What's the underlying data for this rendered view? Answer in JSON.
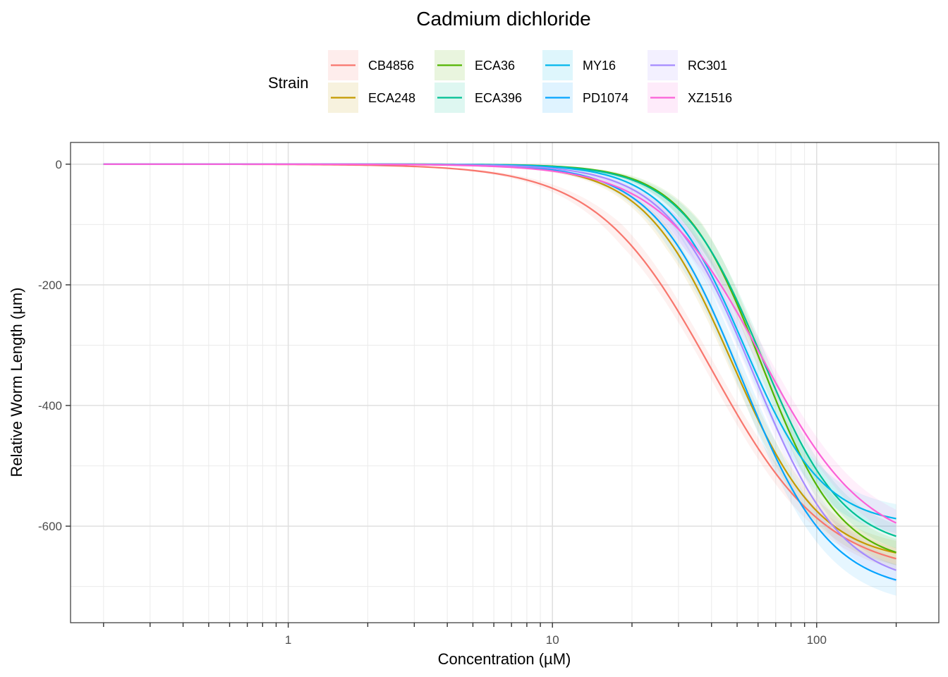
{
  "chart_data": {
    "type": "line",
    "title": "Cadmium dichloride",
    "xlabel": "Concentration (µM)",
    "ylabel": "Relative Worm Length (µm)",
    "xscale": "log10",
    "xlim": [
      0.15,
      290
    ],
    "ylim": [
      -760,
      36
    ],
    "x_major_ticks": [
      {
        "value": 1,
        "label": "1"
      },
      {
        "value": 10,
        "label": "10"
      },
      {
        "value": 100,
        "label": "100"
      }
    ],
    "y_major_ticks": [
      {
        "value": 0,
        "label": "0"
      },
      {
        "value": -200,
        "label": "-200"
      },
      {
        "value": -400,
        "label": "-400"
      },
      {
        "value": -600,
        "label": "-600"
      }
    ],
    "x_minor_ticks": [
      0.2,
      0.3,
      0.4,
      0.5,
      0.6,
      0.7,
      0.8,
      0.9,
      2,
      3,
      4,
      5,
      6,
      7,
      8,
      9,
      20,
      30,
      40,
      50,
      60,
      70,
      80,
      90,
      200
    ],
    "dose_range": [
      0.2,
      200
    ],
    "legend": {
      "title": "Strain",
      "position": "top"
    },
    "series": [
      {
        "name": "CB4856",
        "color": "#F8766D",
        "bottom": -680,
        "ec50": 40,
        "hill": 2.0,
        "ci": 18
      },
      {
        "name": "ECA248",
        "color": "#C49A00",
        "bottom": -660,
        "ec50": 48,
        "hill": 2.6,
        "ci": 20
      },
      {
        "name": "ECA36",
        "color": "#53B400",
        "bottom": -665,
        "ec50": 62,
        "hill": 2.9,
        "ci": 22
      },
      {
        "name": "ECA396",
        "color": "#00C094",
        "bottom": -640,
        "ec50": 62,
        "hill": 2.8,
        "ci": 20
      },
      {
        "name": "MY16",
        "color": "#00B6EB",
        "bottom": -600,
        "ec50": 53,
        "hill": 2.9,
        "ci": 24
      },
      {
        "name": "PD1074",
        "color": "#06A4FF",
        "bottom": -710,
        "ec50": 52,
        "hill": 2.6,
        "ci": 26
      },
      {
        "name": "RC301",
        "color": "#A58AFF",
        "bottom": -700,
        "ec50": 58,
        "hill": 2.6,
        "ci": 20
      },
      {
        "name": "XZ1516",
        "color": "#FB61D7",
        "bottom": -640,
        "ec50": 62,
        "hill": 2.2,
        "ci": 22
      }
    ]
  }
}
